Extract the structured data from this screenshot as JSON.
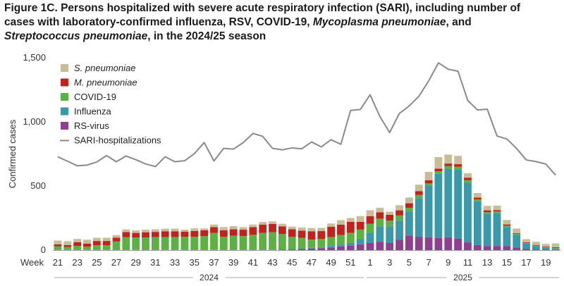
{
  "title": {
    "line1": "Figure 1C. Persons hospitalized with severe acute respiratory infection (SARI), including number of",
    "line2_a": "cases with laboratory-confirmed influenza, RSV, COVID-19, ",
    "line2_b": "Mycoplasma pneumoniae",
    "line2_c": ", and",
    "line3_a": "Streptococcus pneumoniae",
    "line3_b": ", in the 2024/25 season"
  },
  "chart_data": {
    "type": "bar",
    "stacked": true,
    "ylabel": "Confirmed cases",
    "xlabel": "Week",
    "ylim": [
      0,
      1500
    ],
    "yticks": [
      "0",
      "500",
      "1,000",
      "1,500"
    ],
    "yticks_values": [
      0,
      500,
      1000,
      1500
    ],
    "weeks": [
      21,
      22,
      23,
      24,
      25,
      26,
      27,
      28,
      29,
      30,
      31,
      32,
      33,
      34,
      35,
      36,
      37,
      38,
      39,
      40,
      41,
      42,
      43,
      44,
      45,
      46,
      47,
      48,
      49,
      50,
      51,
      52,
      1,
      2,
      3,
      4,
      5,
      6,
      7,
      8,
      9,
      10,
      11,
      12,
      13,
      14,
      15,
      16,
      17,
      18,
      19,
      20
    ],
    "xtick_labels": [
      "21",
      "23",
      "25",
      "27",
      "29",
      "31",
      "33",
      "35",
      "37",
      "39",
      "41",
      "43",
      "45",
      "47",
      "49",
      "51",
      "1",
      "3",
      "5",
      "7",
      "9",
      "11",
      "13",
      "15",
      "17",
      "19"
    ],
    "years": [
      {
        "label": "2024",
        "from_week_index": 0,
        "to_week_index": 31
      },
      {
        "label": "2025",
        "from_week_index": 32,
        "to_week_index": 51
      }
    ],
    "series": [
      {
        "name": "RS-virus",
        "color": "#8e3f8e",
        "values": [
          2,
          2,
          2,
          2,
          2,
          2,
          2,
          2,
          2,
          2,
          2,
          2,
          2,
          2,
          2,
          2,
          2,
          2,
          2,
          2,
          2,
          2,
          2,
          3,
          5,
          8,
          12,
          15,
          20,
          28,
          35,
          45,
          55,
          65,
          55,
          80,
          110,
          105,
          100,
          95,
          100,
          90,
          60,
          40,
          30,
          30,
          30,
          20,
          10,
          5,
          3,
          2
        ]
      },
      {
        "name": "Influenza",
        "color": "#3b98a8",
        "values": [
          2,
          2,
          2,
          2,
          2,
          2,
          2,
          2,
          2,
          2,
          2,
          2,
          2,
          2,
          2,
          2,
          2,
          2,
          2,
          2,
          2,
          2,
          2,
          2,
          3,
          3,
          5,
          8,
          12,
          15,
          20,
          40,
          80,
          120,
          130,
          150,
          190,
          300,
          400,
          500,
          535,
          540,
          465,
          340,
          250,
          260,
          150,
          100,
          40,
          25,
          15,
          10
        ]
      },
      {
        "name": "COVID-19",
        "color": "#5db143",
        "values": [
          25,
          20,
          28,
          22,
          34,
          34,
          63,
          97,
          95,
          95,
          98,
          98,
          98,
          100,
          100,
          105,
          130,
          100,
          108,
          105,
          115,
          130,
          135,
          120,
          95,
          85,
          65,
          65,
          70,
          75,
          80,
          75,
          70,
          60,
          45,
          40,
          30,
          25,
          20,
          20,
          20,
          20,
          20,
          15,
          15,
          12,
          10,
          8,
          5,
          5,
          5,
          5
        ]
      },
      {
        "name": "M. pneumoniae",
        "color": "#c0221e",
        "values": [
          15,
          15,
          30,
          25,
          33,
          33,
          30,
          40,
          35,
          40,
          40,
          45,
          45,
          40,
          45,
          45,
          45,
          50,
          50,
          50,
          60,
          65,
          65,
          60,
          60,
          55,
          65,
          60,
          80,
          80,
          85,
          60,
          60,
          50,
          45,
          40,
          35,
          30,
          25,
          20,
          20,
          20,
          20,
          15,
          15,
          10,
          10,
          5,
          5,
          5,
          5,
          5
        ]
      },
      {
        "name": "S. pneumoniae",
        "color": "#c9bc98",
        "values": [
          30,
          30,
          25,
          30,
          25,
          25,
          20,
          20,
          20,
          20,
          20,
          20,
          20,
          15,
          20,
          15,
          20,
          25,
          25,
          20,
          20,
          20,
          20,
          20,
          20,
          25,
          25,
          25,
          25,
          35,
          30,
          45,
          45,
          35,
          25,
          40,
          45,
          50,
          65,
          90,
          70,
          65,
          35,
          35,
          35,
          35,
          35,
          35,
          25,
          25,
          20,
          30
        ]
      }
    ],
    "line": {
      "name": "SARI-hospitalizations",
      "color": "#8a8a8a",
      "values": [
        728,
        693,
        657,
        663,
        687,
        737,
        689,
        734,
        705,
        672,
        651,
        728,
        689,
        697,
        752,
        839,
        695,
        793,
        788,
        838,
        910,
        887,
        793,
        782,
        797,
        790,
        843,
        805,
        861,
        825,
        1089,
        1097,
        1211,
        1042,
        917,
        1066,
        1124,
        1200,
        1320,
        1460,
        1411,
        1395,
        1167,
        1093,
        1099,
        890,
        867,
        793,
        703,
        690,
        671,
        585
      ]
    },
    "legend": {
      "position": "top-left",
      "entries": [
        {
          "label": "S. pneumoniae",
          "italic": true,
          "color": "#c9bc98",
          "kind": "box"
        },
        {
          "label": "M. pneumoniae",
          "italic": true,
          "color": "#c0221e",
          "kind": "box"
        },
        {
          "label": "COVID-19",
          "italic": false,
          "color": "#5db143",
          "kind": "box"
        },
        {
          "label": "Influenza",
          "italic": false,
          "color": "#3b98a8",
          "kind": "box"
        },
        {
          "label": "RS-virus",
          "italic": false,
          "color": "#8e3f8e",
          "kind": "box"
        },
        {
          "label": "SARI-hospitalizations",
          "italic": false,
          "color": "#8a8a8a",
          "kind": "line"
        }
      ]
    },
    "grid": false
  }
}
